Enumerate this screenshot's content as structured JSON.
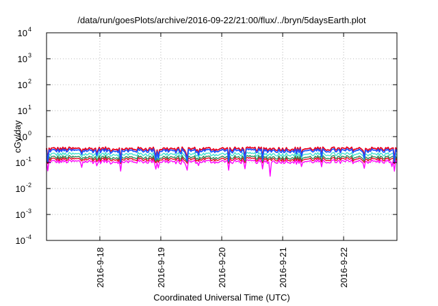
{
  "chart_data": {
    "type": "line",
    "title": "/data/run/goesPlots/archive/2016-09-22/21:00/flux/../bryn/5daysEarth.plot",
    "xlabel": "Coordinated Universal Time (UTC)",
    "ylabel": "cGy/day",
    "yscale": "log",
    "ylim": [
      0.0001,
      10000
    ],
    "y_ticks": [
      {
        "value": 0.0001,
        "base": "10",
        "exp": "-4"
      },
      {
        "value": 0.001,
        "base": "10",
        "exp": "-3"
      },
      {
        "value": 0.01,
        "base": "10",
        "exp": "-2"
      },
      {
        "value": 0.1,
        "base": "10",
        "exp": "-1"
      },
      {
        "value": 1,
        "base": "10",
        "exp": "0"
      },
      {
        "value": 10,
        "base": "10",
        "exp": "1"
      },
      {
        "value": 100,
        "base": "10",
        "exp": "2"
      },
      {
        "value": 1000,
        "base": "10",
        "exp": "3"
      },
      {
        "value": 10000,
        "base": "10",
        "exp": "4"
      }
    ],
    "xlim": [
      "2016-09-17 03:00",
      "2016-09-22 21:00"
    ],
    "x_ticks": [
      "2016-9-18",
      "2016-9-19",
      "2016-9-20",
      "2016-9-21",
      "2016-9-22"
    ],
    "grid": true,
    "legend": false,
    "series": [
      {
        "color": "#ff00ff",
        "base": 0.11,
        "spike_low": 0.045
      },
      {
        "color": "#e8001c",
        "base": 0.135,
        "spike_low": 0.09
      },
      {
        "color": "#2e8b57",
        "base": 0.16,
        "spike_low": 0.1
      },
      {
        "color": "#40e0d0",
        "base": 0.21,
        "spike_low": 0.11
      },
      {
        "color": "#e8001c",
        "base": 0.34,
        "spike_low": 0.13
      },
      {
        "color": "#1e50ff",
        "base": 0.29,
        "spike_low": 0.1
      }
    ],
    "notable_points": [
      {
        "x": "2016-09-17 17:00",
        "y": 0.065
      },
      {
        "x": "2016-09-20 19:00",
        "y": 0.03
      },
      {
        "x": "2016-09-22 19:00",
        "y": 0.07
      }
    ]
  }
}
